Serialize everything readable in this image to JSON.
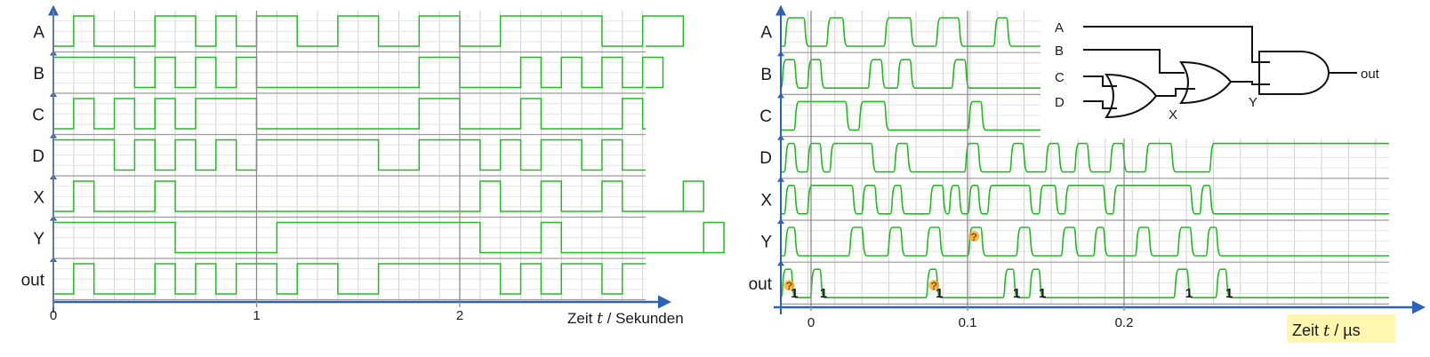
{
  "left_panel": {
    "signals": [
      {
        "label": "A",
        "edges": [
          0.1,
          0.2,
          0.5,
          0.7,
          0.8,
          0.9,
          1.0,
          1.2,
          1.4,
          1.6,
          1.8,
          2.0,
          2.2,
          2.7,
          2.9,
          3.1
        ]
      },
      {
        "label": "B",
        "edges": [
          0.0,
          0.4,
          0.5,
          0.6,
          0.7,
          0.8,
          0.9,
          1.0,
          1.8,
          2.0,
          2.3,
          2.4,
          2.5,
          2.6,
          2.7,
          2.8,
          2.9,
          3.0
        ]
      },
      {
        "label": "C",
        "edges": [
          0.1,
          0.2,
          0.3,
          0.4,
          0.5,
          0.6,
          0.7,
          1.0,
          1.8,
          2.0,
          2.3,
          2.4,
          2.8,
          2.9
        ]
      },
      {
        "label": "D",
        "edges": [
          0.0,
          0.3,
          0.4,
          0.5,
          0.6,
          0.7,
          0.8,
          0.9,
          1.0,
          1.6,
          1.8,
          2.1,
          2.2,
          2.3,
          2.4,
          2.6,
          2.7,
          2.8
        ]
      },
      {
        "label": "X",
        "edges": [
          0.1,
          0.2,
          0.5,
          0.6,
          2.1,
          2.2,
          2.4,
          2.5,
          2.7,
          2.8,
          3.1,
          3.2
        ]
      },
      {
        "label": "Y",
        "edges": [
          0.0,
          0.6,
          1.1,
          2.1,
          2.4,
          2.5,
          3.2,
          3.3
        ]
      },
      {
        "label": "out",
        "edges": [
          0.1,
          0.2,
          0.5,
          0.6,
          0.7,
          0.8,
          0.9,
          1.1,
          1.2,
          1.4,
          1.6,
          2.2,
          2.3,
          2.4,
          2.5,
          2.7,
          2.8
        ]
      }
    ],
    "x_ticks": [
      "0",
      "1",
      "2"
    ],
    "x_axis_label_pre": "Zeit ",
    "x_axis_label_var": "t",
    "x_axis_label_post": " / Sekunden"
  },
  "right_panel": {
    "signals": [
      {
        "label": "A",
        "edges": [
          0.1,
          0.7,
          1.4,
          1.9,
          3.2,
          4.0,
          4.8,
          5.5,
          6.6,
          7.0
        ]
      },
      {
        "label": "B",
        "edges": [
          0.0,
          0.4,
          0.8,
          1.2,
          2.7,
          3.1,
          3.6,
          4.0,
          5.3,
          5.7
        ]
      },
      {
        "label": "C",
        "edges": [
          0.4,
          2.0,
          2.4,
          3.2,
          5.8,
          6.2
        ]
      },
      {
        "label": "D",
        "edges": [
          0.1,
          0.4,
          0.8,
          1.2,
          1.5,
          2.8,
          3.5,
          3.9,
          5.7,
          6.1,
          7.1,
          7.5,
          8.2,
          8.6,
          9.1,
          9.5,
          10.2,
          10.6,
          11.3,
          12.1,
          13.3
        ]
      },
      {
        "label": "X",
        "edges": [
          0.1,
          0.4,
          0.8,
          2.2,
          2.5,
          2.9,
          3.4,
          3.7,
          4.6,
          5.0,
          5.2,
          5.5,
          5.8,
          6.1,
          6.4,
          7.7,
          8.0,
          8.5,
          8.8,
          10.0,
          10.3,
          12.7,
          13.0,
          13.3
        ]
      },
      {
        "label": "Y",
        "edges": [
          0.1,
          0.4,
          2.1,
          2.5,
          3.3,
          3.7,
          4.5,
          4.9,
          5.8,
          6.2,
          7.3,
          7.7,
          8.7,
          9.1,
          9.7,
          10.0,
          11.0,
          11.4,
          12.3,
          12.7,
          13.2,
          13.5
        ]
      },
      {
        "label": "out",
        "edges": [
          0.0,
          0.3,
          0.9,
          1.2,
          4.5,
          4.8,
          6.9,
          7.2,
          7.7,
          8.0,
          12.2,
          12.6,
          13.5,
          13.8
        ]
      }
    ],
    "x_ticks": [
      "0",
      "0.1",
      "0.2"
    ],
    "x_axis_label_pre": "Zeit ",
    "x_axis_label_var": "t",
    "x_axis_label_post": " / µs",
    "out_pulse_label": "1",
    "glitch_mark": "?",
    "circuit": {
      "inputs": [
        "A",
        "B",
        "C",
        "D"
      ],
      "intermediate": [
        "X",
        "Y"
      ],
      "output": "out"
    }
  },
  "colors": {
    "signal_green": "#22bb22",
    "axis_blue": "#2a62b8",
    "grid": "#d0d0d0",
    "highlight_yellow": "#fff7b0",
    "glitch_orange": "#f5a623"
  }
}
